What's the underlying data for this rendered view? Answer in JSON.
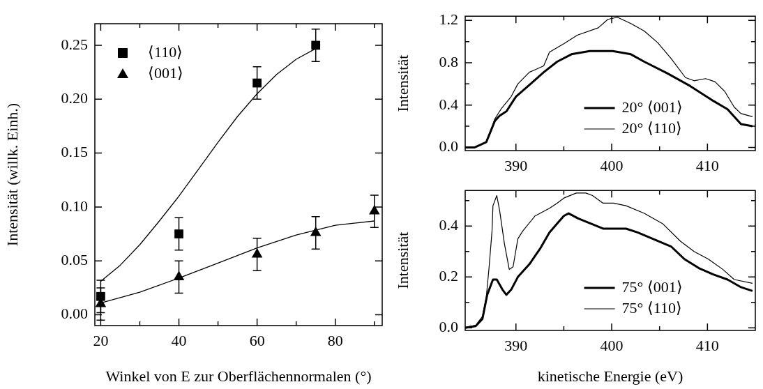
{
  "chart_data": [
    {
      "type": "scatter",
      "xlabel": "Winkel von E zur Oberflächennormalen (°)",
      "ylabel": "Intensität (willk. Einh.)",
      "xlim": [
        18.5,
        92
      ],
      "ylim": [
        -0.01,
        0.27
      ],
      "xticks": [
        20,
        {
          "value": 30,
          "label": null
        },
        40,
        {
          "value": 50,
          "label": null
        },
        60,
        {
          "value": 70,
          "label": null
        },
        80,
        {
          "value": 90,
          "label": null
        }
      ],
      "yticks": [
        {
          "value": 0,
          "label": "0.00"
        },
        {
          "value": 0.05,
          "label": "0.05"
        },
        {
          "value": 0.1,
          "label": "0.10"
        },
        {
          "value": 0.15,
          "label": "0.15"
        },
        {
          "value": 0.2,
          "label": "0.20"
        },
        {
          "value": 0.25,
          "label": "0.25"
        }
      ],
      "legend": "top left",
      "series": [
        {
          "name": "⟨110⟩",
          "color": "#000000",
          "marker": "square",
          "x": [
            20,
            40,
            60,
            75
          ],
          "values": [
            0.017,
            0.075,
            0.215,
            0.25
          ],
          "errors": [
            0.015,
            0.015,
            0.015,
            0.015
          ]
        },
        {
          "name": "⟨001⟩",
          "color": "#000000",
          "marker": "triangle",
          "x": [
            20,
            40,
            60,
            75,
            90
          ],
          "values": [
            0.01,
            0.035,
            0.056,
            0.076,
            0.096
          ],
          "errors": [
            0.015,
            0.015,
            0.015,
            0.015,
            0.015
          ]
        },
        {
          "type": "line",
          "color": "#000000",
          "x": [
            20,
            25,
            30,
            35,
            40,
            45,
            50,
            55,
            60,
            65,
            70,
            75
          ],
          "values": [
            0.031,
            0.046,
            0.065,
            0.087,
            0.11,
            0.135,
            0.16,
            0.184,
            0.205,
            0.223,
            0.237,
            0.247
          ]
        },
        {
          "type": "line",
          "color": "#000000",
          "x": [
            20,
            30,
            40,
            50,
            60,
            70,
            80,
            90
          ],
          "values": [
            0.011,
            0.021,
            0.034,
            0.048,
            0.062,
            0.074,
            0.083,
            0.087
          ]
        }
      ]
    },
    {
      "type": "line",
      "ylabel": "Intensität",
      "xlim": [
        384.7,
        415
      ],
      "ylim": [
        -0.03,
        1.24
      ],
      "xticks": [
        390,
        {
          "value": 395,
          "label": null
        },
        400,
        {
          "value": 405,
          "label": null
        },
        410
      ],
      "yticks": [
        {
          "value": 0,
          "label": "0.0"
        },
        {
          "value": 0.2,
          "label": null
        },
        {
          "value": 0.4,
          "label": "0.4"
        },
        {
          "value": 0.6,
          "label": null
        },
        {
          "value": 0.8,
          "label": "0.8"
        },
        {
          "value": 1.0,
          "label": null
        },
        {
          "value": 1.2,
          "label": "1.2"
        }
      ],
      "legend": "bottom",
      "series": [
        {
          "name": "20° ⟨001⟩",
          "color": "#000000",
          "x": [
            384.7,
            385.7,
            386.9,
            387.8,
            388.3,
            389.0,
            390.0,
            391.4,
            392.9,
            394.3,
            395.8,
            397.7,
            400.1,
            402.0,
            403.4,
            405.8,
            408.2,
            410.6,
            412.1,
            413.5,
            414.7
          ],
          "values": [
            0.0,
            0.0,
            0.05,
            0.25,
            0.3,
            0.34,
            0.48,
            0.59,
            0.71,
            0.81,
            0.88,
            0.91,
            0.91,
            0.88,
            0.81,
            0.7,
            0.58,
            0.44,
            0.36,
            0.22,
            0.2
          ]
        },
        {
          "name": "20° ⟨110⟩",
          "color": "#000000",
          "x": [
            384.7,
            385.7,
            386.9,
            387.8,
            388.5,
            389.5,
            390.2,
            391.4,
            392.9,
            393.5,
            395.0,
            396.4,
            398.6,
            399.6,
            400.6,
            402.0,
            403.4,
            404.8,
            406.2,
            407.7,
            408.6,
            409.8,
            410.8,
            411.8,
            412.8,
            413.5,
            414.7
          ],
          "values": [
            0.0,
            0.0,
            0.05,
            0.27,
            0.37,
            0.48,
            0.6,
            0.71,
            0.77,
            0.9,
            0.98,
            1.06,
            1.13,
            1.21,
            1.23,
            1.17,
            1.1,
            0.99,
            0.84,
            0.66,
            0.63,
            0.65,
            0.62,
            0.53,
            0.38,
            0.32,
            0.29
          ]
        }
      ]
    },
    {
      "type": "line",
      "xlabel": "kinetische Energie (eV)",
      "ylabel": "Intensität",
      "xlim": [
        384.7,
        415
      ],
      "ylim": [
        -0.01,
        0.54
      ],
      "xticks": [
        390,
        {
          "value": 395,
          "label": null
        },
        400,
        {
          "value": 405,
          "label": null
        },
        410
      ],
      "yticks": [
        {
          "value": 0,
          "label": "0.0"
        },
        {
          "value": 0.1,
          "label": null
        },
        {
          "value": 0.2,
          "label": "0.2"
        },
        {
          "value": 0.3,
          "label": null
        },
        {
          "value": 0.4,
          "label": "0.4"
        },
        {
          "value": 0.5,
          "label": null
        }
      ],
      "legend": "bottom",
      "series": [
        {
          "name": "75° ⟨001⟩",
          "color": "#000000",
          "x": [
            384.7,
            385.8,
            386.5,
            387.0,
            387.6,
            388.0,
            388.6,
            389.0,
            389.5,
            390.2,
            391.4,
            392.5,
            393.5,
            394.3,
            395.0,
            395.5,
            396.5,
            397.8,
            399.1,
            400.2,
            401.5,
            402.7,
            404.3,
            406.2,
            407.6,
            409.1,
            410.6,
            412.1,
            413.5,
            414.7
          ],
          "values": [
            0.0,
            0.007,
            0.035,
            0.13,
            0.19,
            0.19,
            0.15,
            0.13,
            0.15,
            0.2,
            0.25,
            0.31,
            0.375,
            0.41,
            0.44,
            0.45,
            0.43,
            0.41,
            0.39,
            0.39,
            0.39,
            0.375,
            0.35,
            0.32,
            0.27,
            0.235,
            0.21,
            0.19,
            0.16,
            0.145
          ]
        },
        {
          "name": "75° ⟨110⟩",
          "color": "#000000",
          "x": [
            384.7,
            385.8,
            386.5,
            386.9,
            387.2,
            387.5,
            387.6,
            388.0,
            388.3,
            388.8,
            389.3,
            389.7,
            390.2,
            390.7,
            392.0,
            393.5,
            394.3,
            395.0,
            396.3,
            397.3,
            398.0,
            399.1,
            400.2,
            401.5,
            403.4,
            405.3,
            407.2,
            408.6,
            410.1,
            411.6,
            412.8,
            414.7
          ],
          "values": [
            0.003,
            0.01,
            0.045,
            0.12,
            0.24,
            0.38,
            0.48,
            0.52,
            0.46,
            0.33,
            0.23,
            0.24,
            0.35,
            0.38,
            0.44,
            0.47,
            0.49,
            0.51,
            0.53,
            0.53,
            0.52,
            0.49,
            0.49,
            0.48,
            0.45,
            0.41,
            0.34,
            0.3,
            0.27,
            0.23,
            0.19,
            0.175
          ]
        }
      ]
    }
  ]
}
